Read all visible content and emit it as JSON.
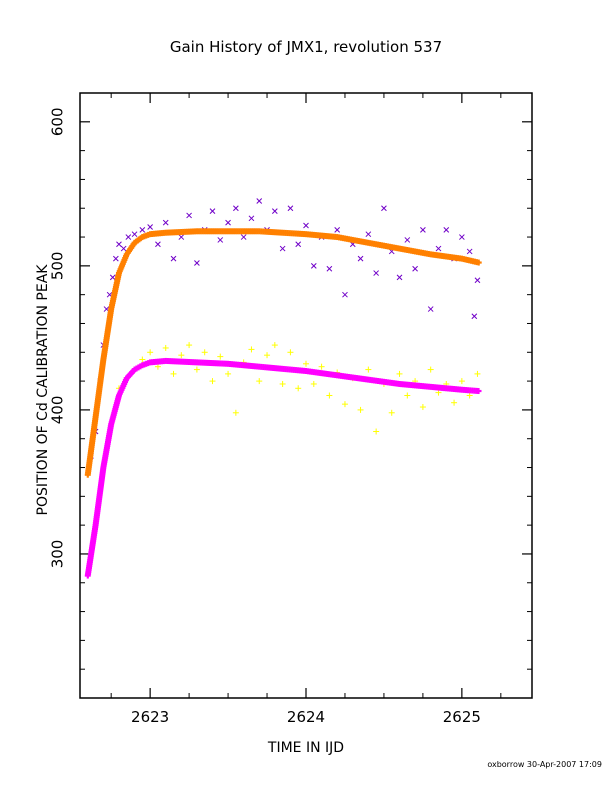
{
  "chart_data": {
    "type": "scatter",
    "title": "Gain History of JMX1, revolution 537",
    "xlabel": "TIME IN IJD",
    "ylabel": "POSITION OF Cd CALIBRATION PEAK",
    "xlim": [
      2622.55,
      2625.45
    ],
    "ylim": [
      200,
      620
    ],
    "x_ticks": [
      2623,
      2624,
      2625
    ],
    "y_ticks": [
      300,
      400,
      500,
      600
    ],
    "grid": false,
    "legend": "none",
    "credit": "oxborrow 30-Apr-2007 17:09",
    "series": [
      {
        "marker": "x",
        "color": "#7000c8",
        "points": [
          [
            2622.62,
            368
          ],
          [
            2622.65,
            385
          ],
          [
            2622.68,
            420
          ],
          [
            2622.7,
            445
          ],
          [
            2622.72,
            470
          ],
          [
            2622.74,
            480
          ],
          [
            2622.76,
            492
          ],
          [
            2622.78,
            505
          ],
          [
            2622.8,
            515
          ],
          [
            2622.83,
            512
          ],
          [
            2622.86,
            520
          ],
          [
            2622.9,
            522
          ],
          [
            2622.95,
            525
          ],
          [
            2623.0,
            527
          ],
          [
            2623.05,
            515
          ],
          [
            2623.1,
            530
          ],
          [
            2623.15,
            505
          ],
          [
            2623.2,
            520
          ],
          [
            2623.25,
            535
          ],
          [
            2623.3,
            502
          ],
          [
            2623.35,
            525
          ],
          [
            2623.4,
            538
          ],
          [
            2623.45,
            518
          ],
          [
            2623.5,
            530
          ],
          [
            2623.55,
            540
          ],
          [
            2623.6,
            520
          ],
          [
            2623.65,
            533
          ],
          [
            2623.7,
            545
          ],
          [
            2623.75,
            525
          ],
          [
            2623.8,
            538
          ],
          [
            2623.85,
            512
          ],
          [
            2623.9,
            540
          ],
          [
            2623.95,
            515
          ],
          [
            2624.0,
            528
          ],
          [
            2624.05,
            500
          ],
          [
            2624.1,
            520
          ],
          [
            2624.15,
            498
          ],
          [
            2624.2,
            525
          ],
          [
            2624.25,
            480
          ],
          [
            2624.3,
            515
          ],
          [
            2624.35,
            505
          ],
          [
            2624.4,
            522
          ],
          [
            2624.45,
            495
          ],
          [
            2624.5,
            540
          ],
          [
            2624.55,
            510
          ],
          [
            2624.6,
            492
          ],
          [
            2624.65,
            518
          ],
          [
            2624.7,
            498
          ],
          [
            2624.75,
            525
          ],
          [
            2624.8,
            470
          ],
          [
            2624.85,
            512
          ],
          [
            2624.9,
            525
          ],
          [
            2624.95,
            505
          ],
          [
            2625.0,
            520
          ],
          [
            2625.05,
            510
          ],
          [
            2625.08,
            465
          ],
          [
            2625.1,
            490
          ]
        ]
      },
      {
        "marker": "+",
        "color": "#ffff00",
        "points": [
          [
            2622.8,
            415
          ],
          [
            2622.85,
            422
          ],
          [
            2622.9,
            428
          ],
          [
            2622.95,
            435
          ],
          [
            2623.0,
            440
          ],
          [
            2623.05,
            430
          ],
          [
            2623.1,
            443
          ],
          [
            2623.15,
            425
          ],
          [
            2623.2,
            438
          ],
          [
            2623.25,
            445
          ],
          [
            2623.3,
            428
          ],
          [
            2623.35,
            440
          ],
          [
            2623.4,
            420
          ],
          [
            2623.45,
            437
          ],
          [
            2623.5,
            425
          ],
          [
            2623.55,
            398
          ],
          [
            2623.6,
            433
          ],
          [
            2623.65,
            442
          ],
          [
            2623.7,
            420
          ],
          [
            2623.75,
            438
          ],
          [
            2623.8,
            445
          ],
          [
            2623.85,
            418
          ],
          [
            2623.9,
            440
          ],
          [
            2623.95,
            415
          ],
          [
            2624.0,
            432
          ],
          [
            2624.05,
            418
          ],
          [
            2624.1,
            430
          ],
          [
            2624.15,
            410
          ],
          [
            2624.2,
            426
          ],
          [
            2624.25,
            404
          ],
          [
            2624.3,
            422
          ],
          [
            2624.35,
            400
          ],
          [
            2624.4,
            428
          ],
          [
            2624.45,
            385
          ],
          [
            2624.5,
            418
          ],
          [
            2624.55,
            398
          ],
          [
            2624.6,
            425
          ],
          [
            2624.65,
            410
          ],
          [
            2624.7,
            420
          ],
          [
            2624.75,
            402
          ],
          [
            2624.8,
            428
          ],
          [
            2624.85,
            412
          ],
          [
            2624.9,
            418
          ],
          [
            2624.95,
            405
          ],
          [
            2625.0,
            420
          ],
          [
            2625.05,
            410
          ],
          [
            2625.1,
            425
          ]
        ]
      },
      {
        "marker": "line",
        "color": "#ff8000",
        "points": [
          [
            2622.6,
            355
          ],
          [
            2622.65,
            395
          ],
          [
            2622.7,
            435
          ],
          [
            2622.75,
            470
          ],
          [
            2622.8,
            495
          ],
          [
            2622.85,
            508
          ],
          [
            2622.9,
            516
          ],
          [
            2622.95,
            520
          ],
          [
            2623.0,
            522
          ],
          [
            2623.1,
            523
          ],
          [
            2623.3,
            524
          ],
          [
            2623.5,
            524
          ],
          [
            2623.7,
            524
          ],
          [
            2624.0,
            522
          ],
          [
            2624.2,
            520
          ],
          [
            2624.4,
            516
          ],
          [
            2624.6,
            512
          ],
          [
            2624.8,
            508
          ],
          [
            2625.0,
            505
          ],
          [
            2625.12,
            502
          ]
        ]
      },
      {
        "marker": "line",
        "color": "#ff00ff",
        "points": [
          [
            2622.6,
            285
          ],
          [
            2622.65,
            320
          ],
          [
            2622.7,
            360
          ],
          [
            2622.75,
            390
          ],
          [
            2622.8,
            410
          ],
          [
            2622.85,
            422
          ],
          [
            2622.9,
            428
          ],
          [
            2622.95,
            431
          ],
          [
            2623.0,
            433
          ],
          [
            2623.1,
            434
          ],
          [
            2623.3,
            433
          ],
          [
            2623.5,
            432
          ],
          [
            2623.7,
            430
          ],
          [
            2624.0,
            427
          ],
          [
            2624.2,
            424
          ],
          [
            2624.4,
            421
          ],
          [
            2624.6,
            418
          ],
          [
            2624.8,
            416
          ],
          [
            2625.0,
            414
          ],
          [
            2625.12,
            413
          ]
        ]
      }
    ]
  }
}
